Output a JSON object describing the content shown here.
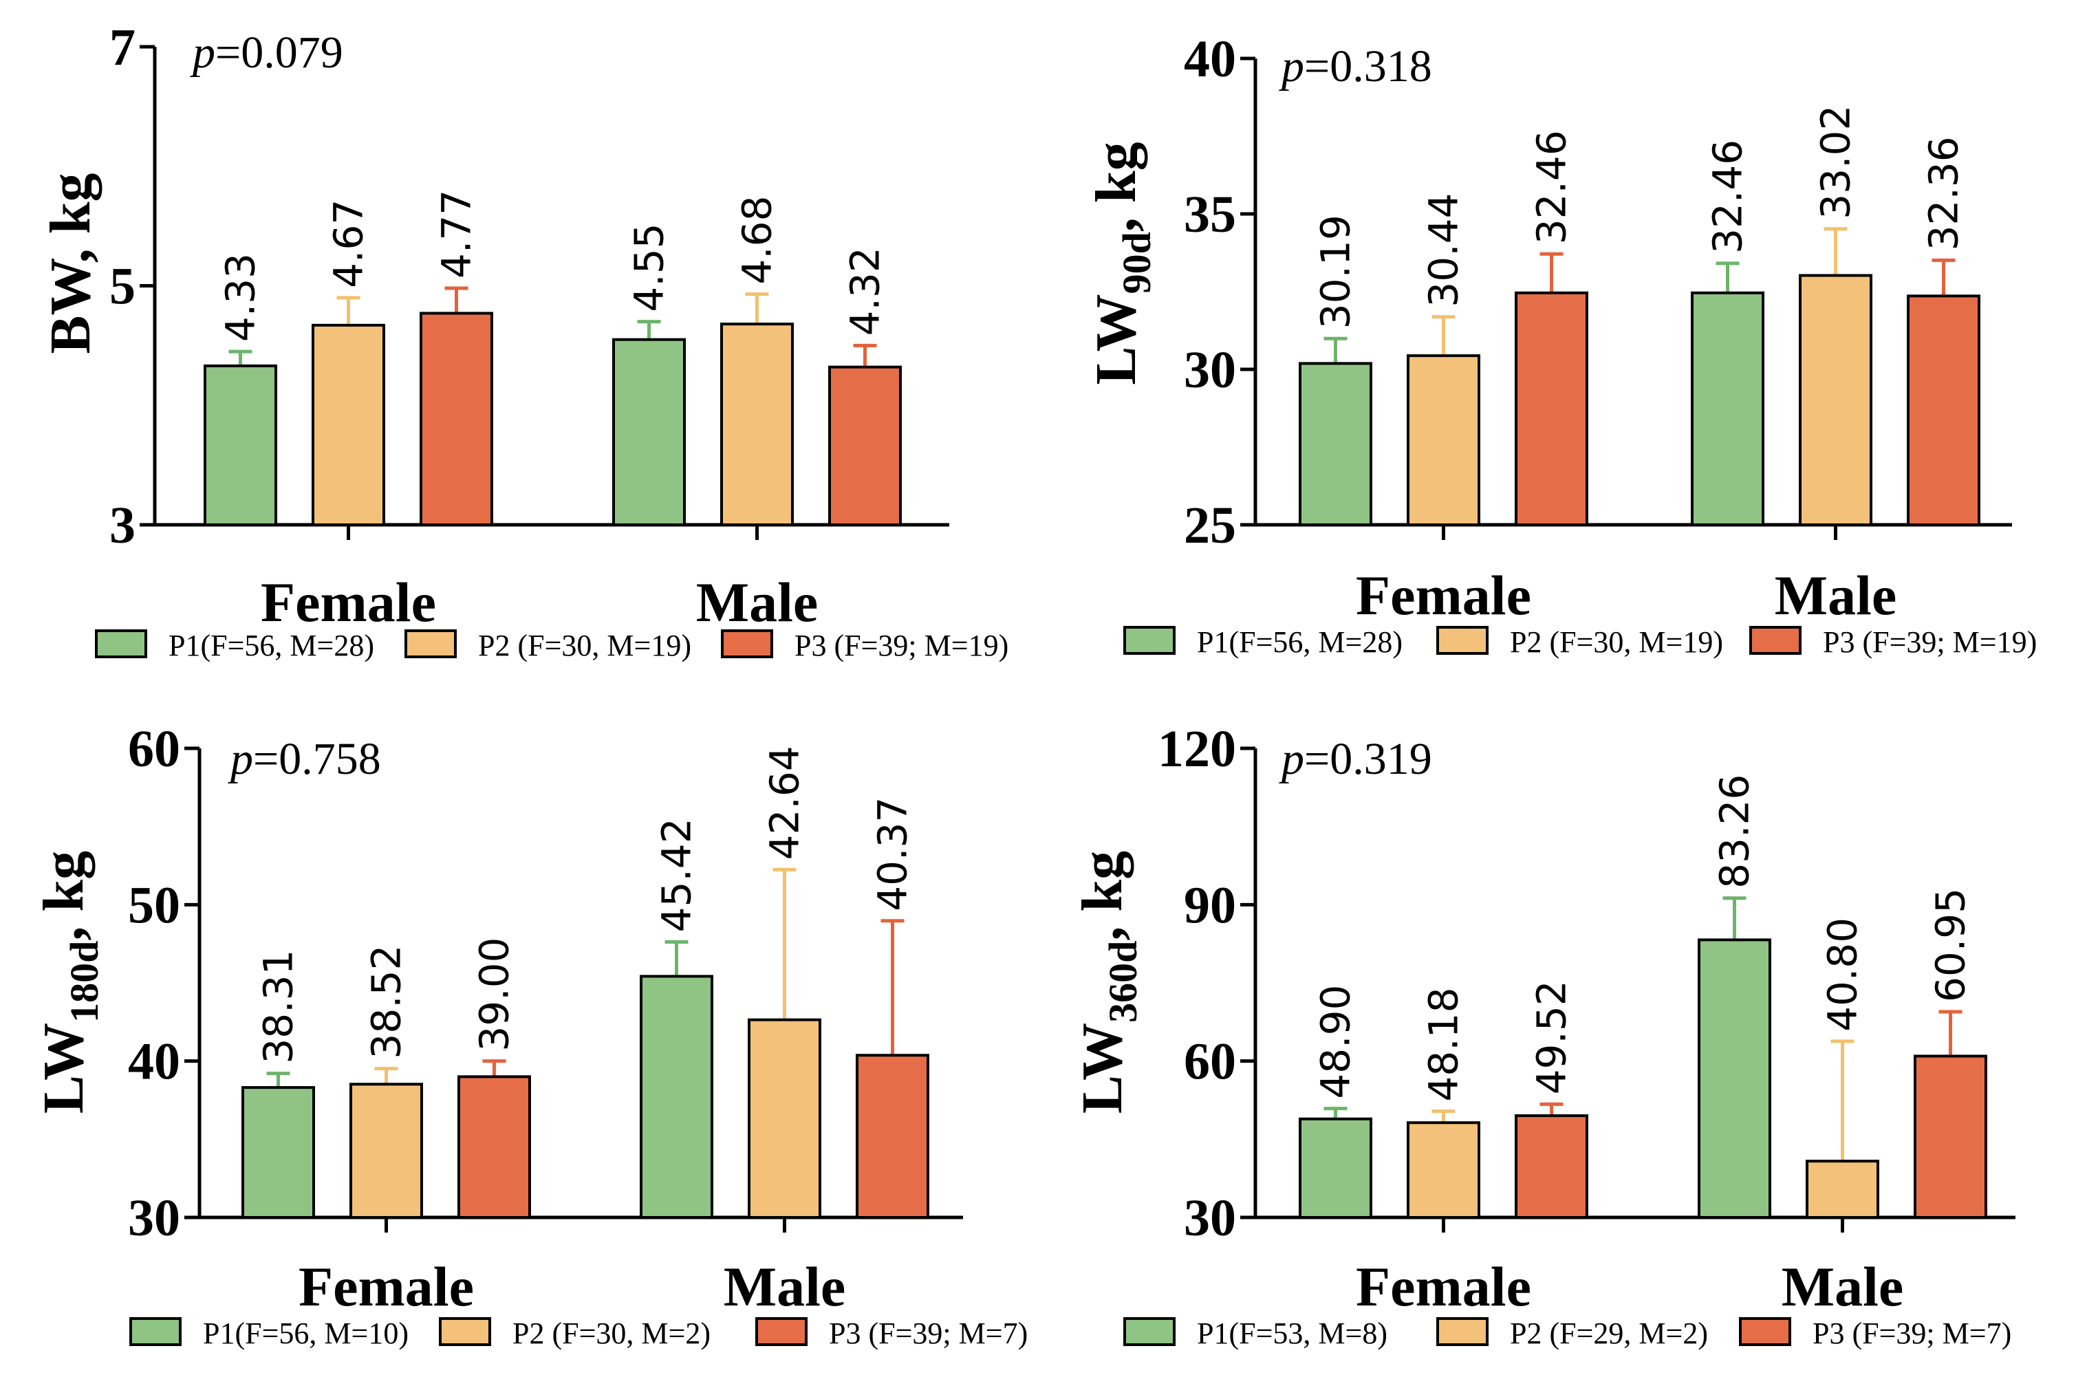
{
  "colors": {
    "P1": "#8fc485",
    "P2": "#f3c17a",
    "P3": "#e56e49",
    "P1_err": "#6db46a",
    "P2_err": "#f2c06e",
    "P3_err": "#e4623a"
  },
  "chart_data": [
    {
      "type": "bar",
      "ylabel": "BW, kg",
      "ylabel_main": "BW, kg",
      "ylabel_sub": "",
      "ylabel_suffix": "",
      "p_prefix": "p",
      "p_value": "=0.079",
      "ylim": [
        3,
        7
      ],
      "yticks": [
        3,
        5,
        7
      ],
      "categories": [
        "Female",
        "Male"
      ],
      "series": [
        {
          "name": "P1(F=56, M=28)",
          "key": "P1",
          "values": [
            4.33,
            4.55
          ],
          "errors": [
            0.12,
            0.15
          ],
          "labels": [
            "4.33",
            "4.55"
          ]
        },
        {
          "name": "P2 (F=30, M=19)",
          "key": "P2",
          "values": [
            4.67,
            4.68
          ],
          "errors": [
            0.23,
            0.25
          ],
          "labels": [
            "4.67",
            "4.68"
          ]
        },
        {
          "name": "P3 (F=39; M=19)",
          "key": "P3",
          "values": [
            4.77,
            4.32
          ],
          "errors": [
            0.21,
            0.18
          ],
          "labels": [
            "4.77",
            "4.32"
          ]
        }
      ]
    },
    {
      "type": "bar",
      "ylabel": "LW90d, kg",
      "ylabel_main": "LW",
      "ylabel_sub": "90d",
      "ylabel_suffix": ", kg",
      "p_prefix": "p",
      "p_value": "=0.318",
      "ylim": [
        25,
        40
      ],
      "yticks": [
        25,
        30,
        35,
        40
      ],
      "categories": [
        "Female",
        "Male"
      ],
      "series": [
        {
          "name": "P1(F=56, M=28)",
          "key": "P1",
          "values": [
            30.19,
            32.46
          ],
          "errors": [
            0.8,
            0.95
          ],
          "labels": [
            "30.19",
            "32.46"
          ]
        },
        {
          "name": "P2 (F=30, M=19)",
          "key": "P2",
          "values": [
            30.44,
            33.02
          ],
          "errors": [
            1.25,
            1.5
          ],
          "labels": [
            "30.44",
            "33.02"
          ]
        },
        {
          "name": "P3 (F=39; M=19)",
          "key": "P3",
          "values": [
            32.46,
            32.36
          ],
          "errors": [
            1.25,
            1.15
          ],
          "labels": [
            "32.46",
            "32.36"
          ]
        }
      ]
    },
    {
      "type": "bar",
      "ylabel": "LW180d, kg",
      "ylabel_main": "LW",
      "ylabel_sub": "180d",
      "ylabel_suffix": ", kg",
      "p_prefix": "p",
      "p_value": "=0.758",
      "ylim": [
        30,
        60
      ],
      "yticks": [
        30,
        40,
        50,
        60
      ],
      "categories": [
        "Female",
        "Male"
      ],
      "series": [
        {
          "name": "P1(F=56, M=10)",
          "key": "P1",
          "values": [
            38.31,
            45.42
          ],
          "errors": [
            0.9,
            2.2
          ],
          "labels": [
            "38.31",
            "45.42"
          ]
        },
        {
          "name": "P2 (F=30, M=2)",
          "key": "P2",
          "values": [
            38.52,
            42.64
          ],
          "errors": [
            1.0,
            9.6
          ],
          "labels": [
            "38.52",
            "42.64"
          ]
        },
        {
          "name": "P3 (F=39; M=7)",
          "key": "P3",
          "values": [
            39.0,
            40.37
          ],
          "errors": [
            1.0,
            8.6
          ],
          "labels": [
            "39.00",
            "40.37"
          ]
        }
      ]
    },
    {
      "type": "bar",
      "ylabel": "LW360d, kg",
      "ylabel_main": "LW",
      "ylabel_sub": "360d",
      "ylabel_suffix": ", kg",
      "p_prefix": "p",
      "p_value": "=0.319",
      "ylim": [
        30,
        120
      ],
      "yticks": [
        30,
        60,
        90,
        120
      ],
      "categories": [
        "Female",
        "Male"
      ],
      "series": [
        {
          "name": "P1(F=53, M=8)",
          "key": "P1",
          "values": [
            48.9,
            83.26
          ],
          "errors": [
            2.0,
            8.0
          ],
          "labels": [
            "48.90",
            "83.26"
          ]
        },
        {
          "name": "P2 (F=29, M=2)",
          "key": "P2",
          "values": [
            48.18,
            40.8
          ],
          "errors": [
            2.2,
            23.0
          ],
          "labels": [
            "48.18",
            "40.80"
          ]
        },
        {
          "name": "P3 (F=39; M=7)",
          "key": "P3",
          "values": [
            49.52,
            60.95
          ],
          "errors": [
            2.2,
            8.5
          ],
          "labels": [
            "49.52",
            "60.95"
          ]
        }
      ]
    }
  ]
}
